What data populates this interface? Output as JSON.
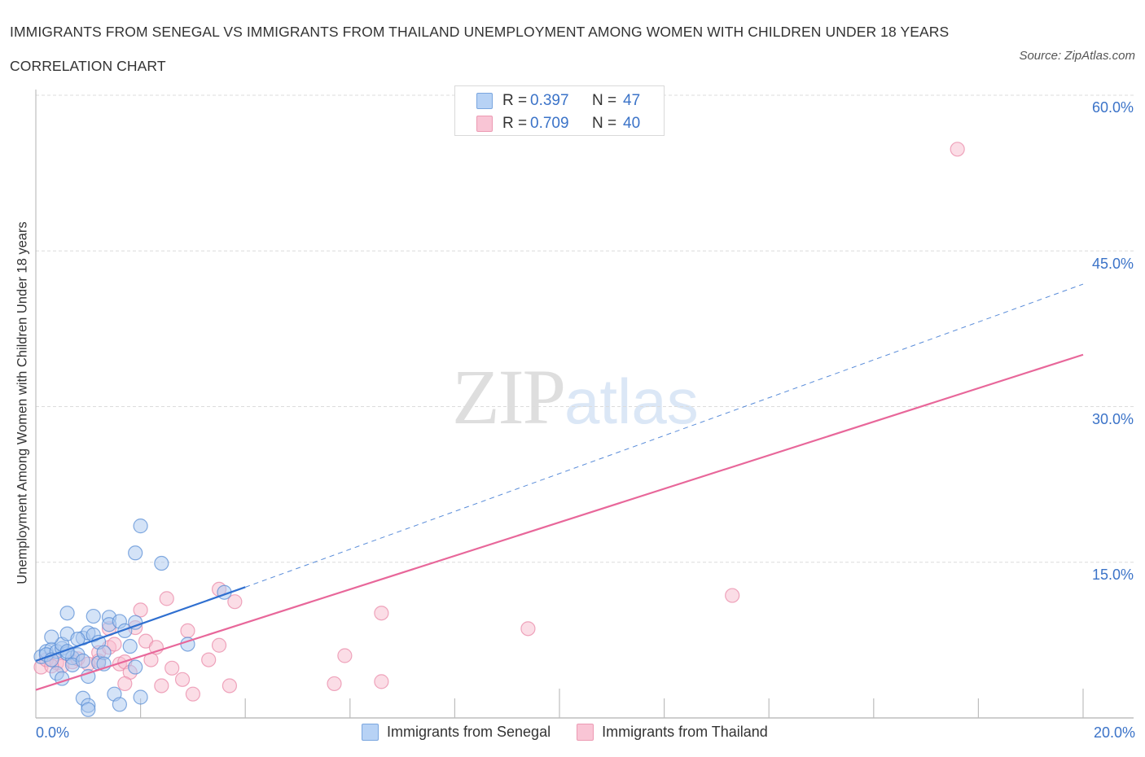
{
  "header": {
    "title": "IMMIGRANTS FROM SENEGAL VS IMMIGRANTS FROM THAILAND UNEMPLOYMENT AMONG WOMEN WITH CHILDREN UNDER 18 YEARS CORRELATION CHART",
    "source": "Source: ZipAtlas.com"
  },
  "watermark": {
    "zip": "ZIP",
    "atlas": "atlas"
  },
  "stats_box": {
    "rows": [
      {
        "r_label": "R =",
        "r_value": "0.397",
        "n_label": "N =",
        "n_value": "47",
        "color": "#b7d2f5",
        "border": "#7aa6df"
      },
      {
        "r_label": "R =",
        "r_value": "0.709",
        "n_label": "N =",
        "n_value": "40",
        "color": "#f9c5d5",
        "border": "#ec9ab3"
      }
    ]
  },
  "axes": {
    "x_min_label": "0.0%",
    "x_max_label": "20.0%",
    "y_tick_labels": [
      "60.0%",
      "45.0%",
      "30.0%",
      "15.0%"
    ],
    "y_label": "Unemployment Among Women with Children Under 18 years"
  },
  "legend": {
    "items": [
      {
        "label": "Immigrants from Senegal",
        "color": "#b7d2f5",
        "border": "#7aa6df"
      },
      {
        "label": "Immigrants from Thailand",
        "color": "#f9c5d5",
        "border": "#ec9ab3"
      }
    ]
  },
  "colors": {
    "senegal_fill": "#a9c8f0",
    "senegal_stroke": "#5b8fd6",
    "senegal_line": "#2f6fd0",
    "thailand_fill": "#f7bccd",
    "thailand_stroke": "#e98aa8",
    "thailand_line": "#e8679a",
    "tick_label": "#3b73c8"
  },
  "chart_data": {
    "type": "scatter",
    "title": "Immigrants from Senegal vs Immigrants from Thailand Unemployment Among Women with Children Under 18 years Correlation Chart",
    "xlabel": "",
    "ylabel": "Unemployment Among Women with Children Under 18 years",
    "xlim": [
      0,
      20
    ],
    "ylim": [
      0,
      60
    ],
    "x_ticks": [
      "0.0%",
      "20.0%"
    ],
    "y_ticks": [
      "15.0%",
      "30.0%",
      "45.0%",
      "60.0%"
    ],
    "grid": "horizontal dashed",
    "legend_position": "bottom",
    "series": [
      {
        "name": "Immigrants from Senegal",
        "R": 0.397,
        "N": 47,
        "trendline": {
          "x": [
            0,
            4.0,
            20
          ],
          "y": [
            5.5,
            12.6,
            41.8
          ],
          "solid_until_x": 4.0
        },
        "points": [
          [
            0.1,
            5.9
          ],
          [
            0.2,
            6.4
          ],
          [
            0.3,
            6.6
          ],
          [
            0.2,
            6.1
          ],
          [
            0.4,
            6.4
          ],
          [
            0.5,
            6.7
          ],
          [
            0.3,
            5.6
          ],
          [
            0.6,
            6.2
          ],
          [
            0.7,
            5.8
          ],
          [
            0.8,
            6.1
          ],
          [
            0.5,
            7.1
          ],
          [
            0.3,
            7.8
          ],
          [
            0.6,
            8.1
          ],
          [
            0.9,
            7.7
          ],
          [
            1.0,
            8.2
          ],
          [
            1.1,
            8.0
          ],
          [
            0.8,
            7.6
          ],
          [
            0.6,
            6.4
          ],
          [
            0.7,
            5.1
          ],
          [
            0.9,
            5.5
          ],
          [
            1.2,
            5.3
          ],
          [
            0.4,
            4.3
          ],
          [
            0.5,
            3.8
          ],
          [
            1.1,
            9.8
          ],
          [
            1.4,
            9.7
          ],
          [
            1.4,
            9.0
          ],
          [
            1.6,
            9.3
          ],
          [
            1.7,
            8.4
          ],
          [
            1.9,
            9.2
          ],
          [
            0.6,
            10.1
          ],
          [
            1.2,
            7.3
          ],
          [
            1.3,
            6.3
          ],
          [
            1.0,
            4.0
          ],
          [
            1.3,
            5.2
          ],
          [
            1.9,
            4.9
          ],
          [
            1.5,
            2.3
          ],
          [
            0.9,
            1.9
          ],
          [
            1.0,
            1.2
          ],
          [
            1.0,
            0.8
          ],
          [
            1.6,
            1.3
          ],
          [
            2.0,
            2.0
          ],
          [
            2.0,
            18.5
          ],
          [
            1.9,
            15.9
          ],
          [
            2.4,
            14.9
          ],
          [
            3.6,
            12.1
          ],
          [
            2.9,
            7.1
          ],
          [
            1.8,
            6.9
          ]
        ]
      },
      {
        "name": "Immigrants from Thailand",
        "R": 0.709,
        "N": 40,
        "trendline": {
          "x": [
            0,
            20
          ],
          "y": [
            2.7,
            35.0
          ]
        },
        "points": [
          [
            0.1,
            4.9
          ],
          [
            0.2,
            5.6
          ],
          [
            0.4,
            5.3
          ],
          [
            0.5,
            5.0
          ],
          [
            0.7,
            5.4
          ],
          [
            0.8,
            5.7
          ],
          [
            1.0,
            5.2
          ],
          [
            1.2,
            5.5
          ],
          [
            1.2,
            6.3
          ],
          [
            1.4,
            6.8
          ],
          [
            1.5,
            7.1
          ],
          [
            1.6,
            5.2
          ],
          [
            1.7,
            5.4
          ],
          [
            1.8,
            4.4
          ],
          [
            1.7,
            3.3
          ],
          [
            1.9,
            8.7
          ],
          [
            2.0,
            10.4
          ],
          [
            2.1,
            7.4
          ],
          [
            2.2,
            5.6
          ],
          [
            2.3,
            6.8
          ],
          [
            2.4,
            3.1
          ],
          [
            2.5,
            11.5
          ],
          [
            2.6,
            4.8
          ],
          [
            2.8,
            3.7
          ],
          [
            2.9,
            8.4
          ],
          [
            3.0,
            2.3
          ],
          [
            3.3,
            5.6
          ],
          [
            3.5,
            7.0
          ],
          [
            3.5,
            12.4
          ],
          [
            3.8,
            11.2
          ],
          [
            3.7,
            3.1
          ],
          [
            1.4,
            8.6
          ],
          [
            5.7,
            3.3
          ],
          [
            5.9,
            6.0
          ],
          [
            6.6,
            10.1
          ],
          [
            6.6,
            3.5
          ],
          [
            9.4,
            8.6
          ],
          [
            13.3,
            11.8
          ],
          [
            17.6,
            54.8
          ],
          [
            0.3,
            5.0
          ]
        ]
      }
    ]
  }
}
